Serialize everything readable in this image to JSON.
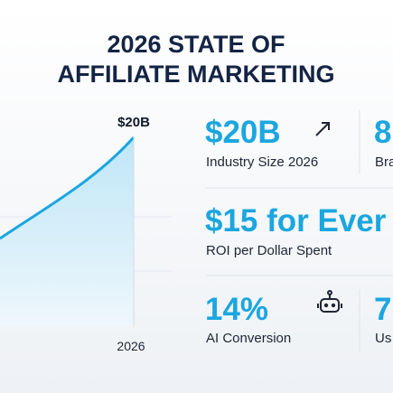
{
  "header": {
    "title_line1": "2026 STATE OF",
    "title_line2": "AFFILIATE MARKETING"
  },
  "chart": {
    "end_label": "$20B",
    "x_label": "2026"
  },
  "stats": [
    {
      "value": "$20B",
      "label": "Industry Size 2026"
    },
    {
      "value": "8",
      "label": "Bra"
    },
    {
      "value": "$15 for Ever",
      "label": "ROI per Dollar Spent"
    },
    {
      "value": "14%",
      "label": "AI Conversion"
    },
    {
      "value": "7",
      "label": "Us"
    }
  ]
}
